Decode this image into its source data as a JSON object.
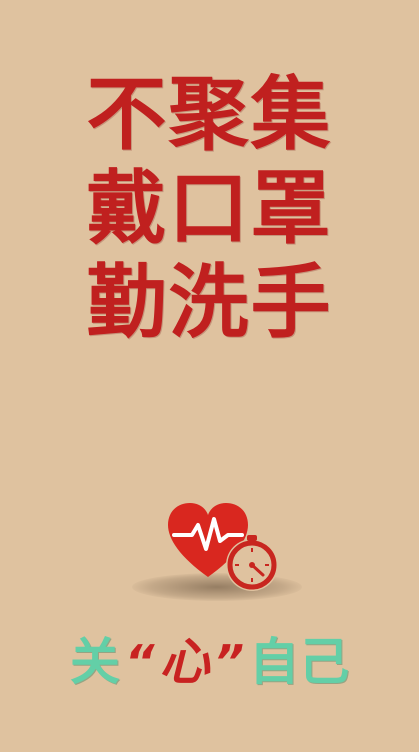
{
  "headline": {
    "line1": "不聚集",
    "line2": "戴口罩",
    "line3": "勤洗手"
  },
  "slogan": {
    "part1": "关",
    "open_quote": "“",
    "heart_char": "心",
    "close_quote": "”",
    "part2": "自己"
  },
  "icon": {
    "name": "heart-rate-stopwatch-icon"
  },
  "colors": {
    "background": "#dfc29f",
    "headline": "#c0201f",
    "slogan_green": "#63cfa7",
    "slogan_red": "#c82221"
  }
}
